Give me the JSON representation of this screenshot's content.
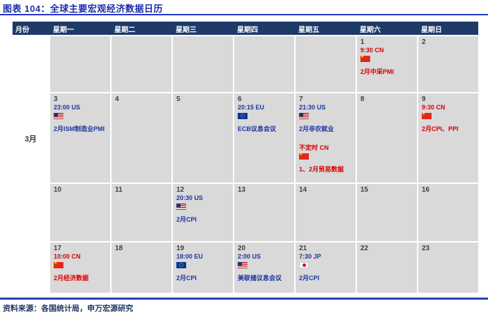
{
  "chart_data": {
    "type": "table",
    "title": "图表 104：全球主要宏观经济数据日历",
    "columns": [
      "月份",
      "星期一",
      "星期二",
      "星期三",
      "星期四",
      "星期五",
      "星期六",
      "星期日"
    ],
    "month": "3月",
    "weeks": [
      {
        "days": [
          {
            "date": ""
          },
          {
            "date": ""
          },
          {
            "date": ""
          },
          {
            "date": ""
          },
          {
            "date": ""
          },
          {
            "date": "1",
            "events": [
              {
                "time": "9:30 CN",
                "flag": "cn",
                "label": "2月中采PMI"
              }
            ]
          },
          {
            "date": "2"
          }
        ]
      },
      {
        "days": [
          {
            "date": "3",
            "events": [
              {
                "time": "23:00 US",
                "flag": "us",
                "label": "2月ISM制造业PMI"
              }
            ]
          },
          {
            "date": "4"
          },
          {
            "date": "5"
          },
          {
            "date": "6",
            "events": [
              {
                "time": "20:15 EU",
                "flag": "eu",
                "label": "ECB议息会议"
              }
            ]
          },
          {
            "date": "7",
            "events": [
              {
                "time": "21:30 US",
                "flag": "us",
                "label": "2月非农就业"
              },
              {
                "time": "不定时 CN",
                "flag": "cn",
                "label": "1、2月贸易数据"
              }
            ]
          },
          {
            "date": "8"
          },
          {
            "date": "9",
            "events": [
              {
                "time": "9:30 CN",
                "flag": "cn",
                "label": "2月CPI、PPI"
              }
            ]
          }
        ]
      },
      {
        "days": [
          {
            "date": "10"
          },
          {
            "date": "11"
          },
          {
            "date": "12",
            "events": [
              {
                "time": "20:30 US",
                "flag": "us",
                "label": "2月CPI"
              }
            ]
          },
          {
            "date": "13"
          },
          {
            "date": "14"
          },
          {
            "date": "15"
          },
          {
            "date": "16"
          }
        ]
      },
      {
        "days": [
          {
            "date": "17",
            "events": [
              {
                "time": "10:00 CN",
                "flag": "cn",
                "label": "2月经济数据"
              }
            ]
          },
          {
            "date": "18"
          },
          {
            "date": "19",
            "events": [
              {
                "time": "18:00 EU",
                "flag": "eu",
                "label": "2月CPI"
              }
            ]
          },
          {
            "date": "20",
            "events": [
              {
                "time": "2:00 US",
                "flag": "us",
                "label": "美联储议息会议"
              }
            ]
          },
          {
            "date": "21",
            "events": [
              {
                "time": "7:30 JP",
                "flag": "jp",
                "label": "2月CPI"
              }
            ]
          },
          {
            "date": "22"
          },
          {
            "date": "23"
          }
        ]
      }
    ]
  },
  "footer": {
    "source": "资料来源：各国统计局，申万宏源研究"
  },
  "colors": {
    "title_blue": "#1c2cac",
    "header_navy": "#1e3a68",
    "event_blue": "#1d34a0",
    "event_red": "#d90000",
    "cell_gray": "#d9d9d9",
    "china_flag_red": "#e02918",
    "eu_flag_blue": "#003399"
  }
}
